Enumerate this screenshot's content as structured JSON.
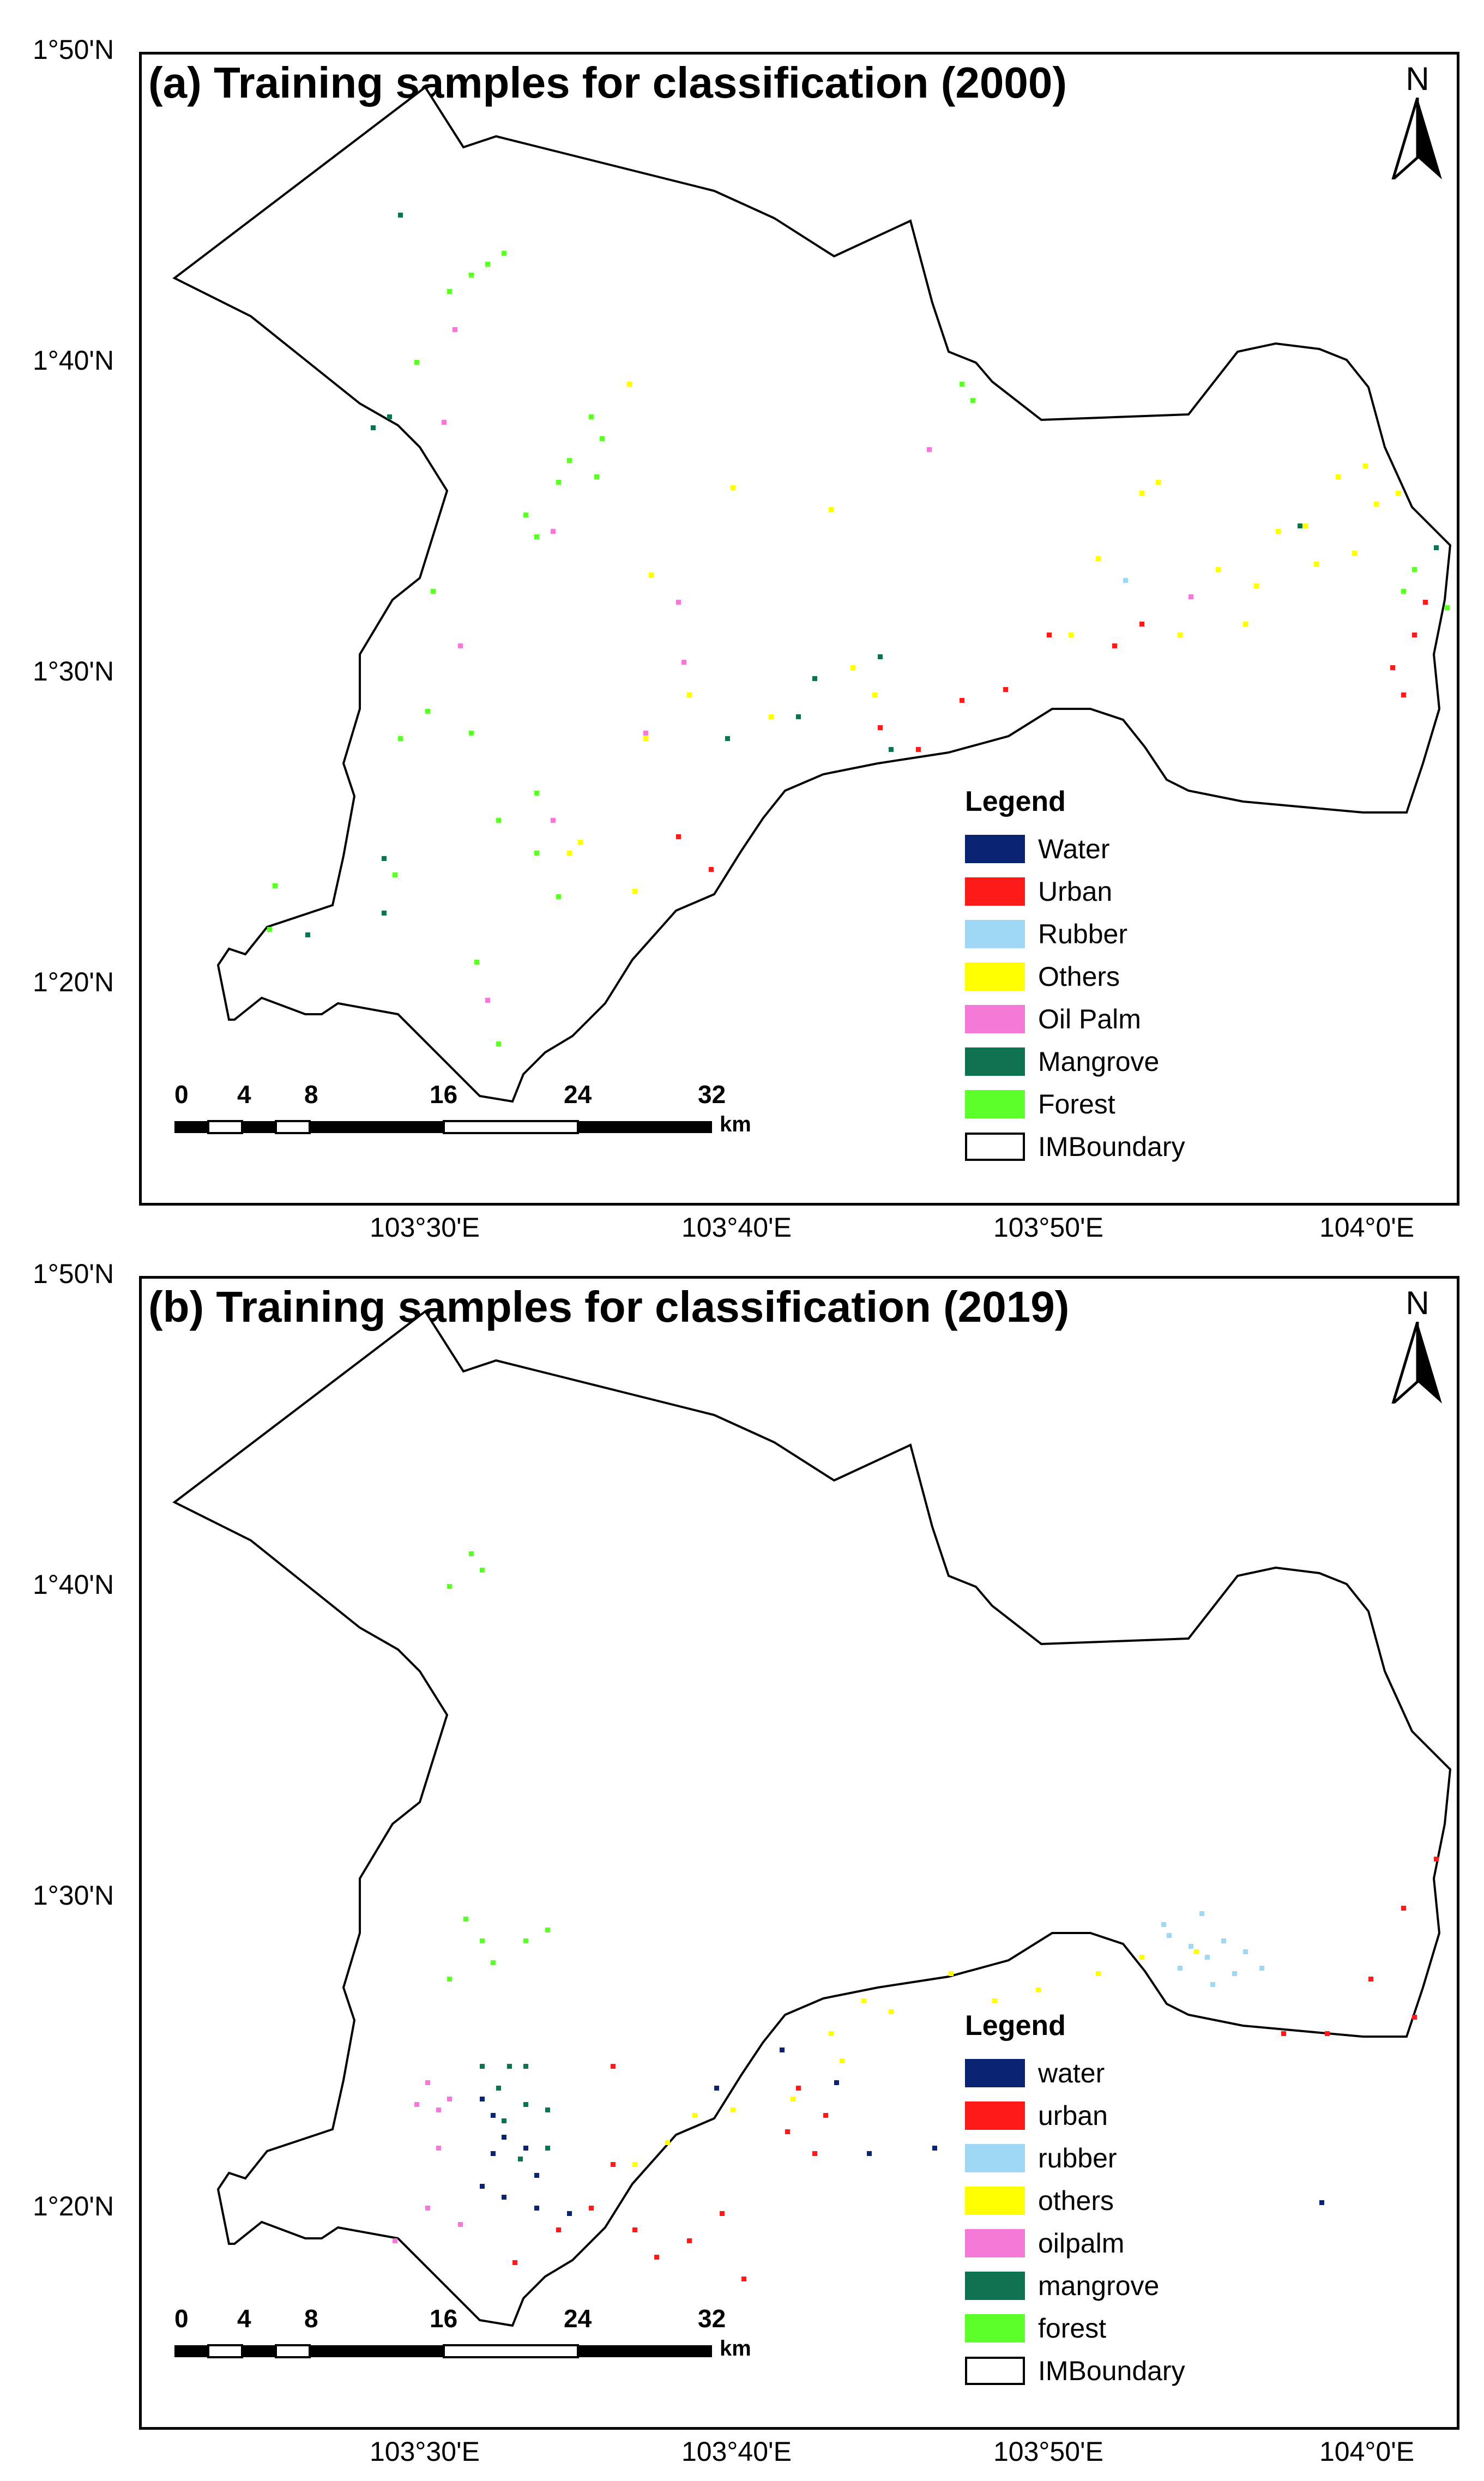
{
  "panels": [
    {
      "title": "(a) Training samples for classification (2000)",
      "legend_title": "Legend",
      "legend": [
        {
          "label": "Water",
          "color": "#0a2472"
        },
        {
          "label": "Urban",
          "color": "#ff1a1a"
        },
        {
          "label": "Rubber",
          "color": "#9ed8f5"
        },
        {
          "label": "Others",
          "color": "#ffff00"
        },
        {
          "label": "Oil Palm",
          "color": "#f57ad8"
        },
        {
          "label": "Mangrove",
          "color": "#0f7352"
        },
        {
          "label": "Forest",
          "color": "#5cff2a"
        },
        {
          "label": "IMBoundary",
          "color": "#ffffff"
        }
      ]
    },
    {
      "title": "(b) Training samples for classification (2019)",
      "legend_title": "Legend",
      "legend": [
        {
          "label": "water",
          "color": "#0a2472"
        },
        {
          "label": "urban",
          "color": "#ff1a1a"
        },
        {
          "label": "rubber",
          "color": "#9ed8f5"
        },
        {
          "label": "others",
          "color": "#ffff00"
        },
        {
          "label": "oilpalm",
          "color": "#f57ad8"
        },
        {
          "label": "mangrove",
          "color": "#0f7352"
        },
        {
          "label": "forest",
          "color": "#5cff2a"
        },
        {
          "label": "IMBoundary",
          "color": "#ffffff"
        }
      ]
    }
  ],
  "lat_labels": [
    "1°50'N",
    "1°40'N",
    "1°30'N",
    "1°20'N"
  ],
  "lon_labels": [
    "103°30'E",
    "103°40'E",
    "103°50'E",
    "104°0'E"
  ],
  "north_letter": "N",
  "scale": {
    "ticks": [
      "0",
      "4",
      "8",
      "16",
      "24",
      "32"
    ],
    "unit": "km"
  }
}
